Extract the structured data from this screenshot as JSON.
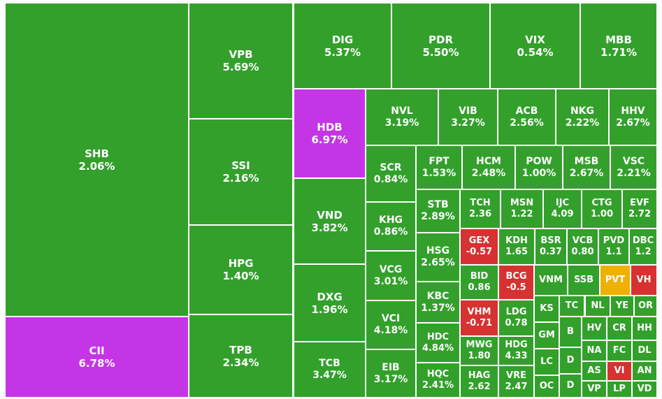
{
  "colors": {
    "up": "#33a02c",
    "down": "#d63232",
    "ceiling": "#c435e6",
    "reference": "#f0b000"
  },
  "chart_data": {
    "type": "treemap",
    "tiles": [
      {
        "id": "SHB",
        "label": "2.06%",
        "status": "up"
      },
      {
        "id": "CII",
        "label": "6.78%",
        "status": "ceiling"
      },
      {
        "id": "VPB",
        "label": "5.69%",
        "status": "up"
      },
      {
        "id": "SSI",
        "label": "2.16%",
        "status": "up"
      },
      {
        "id": "HPG",
        "label": "1.40%",
        "status": "up"
      },
      {
        "id": "TPB",
        "label": "2.34%",
        "status": "up"
      },
      {
        "id": "DIG",
        "label": "5.37%",
        "status": "up"
      },
      {
        "id": "PDR",
        "label": "5.50%",
        "status": "up"
      },
      {
        "id": "VIX",
        "label": "0.54%",
        "status": "up"
      },
      {
        "id": "MBB",
        "label": "1.71%",
        "status": "up"
      },
      {
        "id": "HDB",
        "label": "6.97%",
        "status": "ceiling"
      },
      {
        "id": "VND",
        "label": "3.82%",
        "status": "up"
      },
      {
        "id": "DXG",
        "label": "1.96%",
        "status": "up"
      },
      {
        "id": "TCB",
        "label": "3.47%",
        "status": "up"
      },
      {
        "id": "NVL",
        "label": "3.19%",
        "status": "up"
      },
      {
        "id": "VIB",
        "label": "3.27%",
        "status": "up"
      },
      {
        "id": "ACB",
        "label": "2.56%",
        "status": "up"
      },
      {
        "id": "NKG",
        "label": "2.22%",
        "status": "up"
      },
      {
        "id": "HHV",
        "label": "2.67%",
        "status": "up"
      },
      {
        "id": "SCR",
        "label": "0.84%",
        "status": "up"
      },
      {
        "id": "FPT",
        "label": "1.53%",
        "status": "up"
      },
      {
        "id": "HCM",
        "label": "2.48%",
        "status": "up"
      },
      {
        "id": "POW",
        "label": "1.00%",
        "status": "up"
      },
      {
        "id": "MSB",
        "label": "2.67%",
        "status": "up"
      },
      {
        "id": "VSC",
        "label": "2.21%",
        "status": "up"
      },
      {
        "id": "KHG",
        "label": "0.86%",
        "status": "up"
      },
      {
        "id": "VCG",
        "label": "3.01%",
        "status": "up"
      },
      {
        "id": "VCI",
        "label": "4.18%",
        "status": "up"
      },
      {
        "id": "EIB",
        "label": "3.17%",
        "status": "up"
      },
      {
        "id": "STB",
        "label": "2.89%",
        "status": "up"
      },
      {
        "id": "HSG",
        "label": "2.65%",
        "status": "up"
      },
      {
        "id": "KBC",
        "label": "1.37%",
        "status": "up"
      },
      {
        "id": "HDC",
        "label": "4.84%",
        "status": "up"
      },
      {
        "id": "HQC",
        "label": "2.41%",
        "status": "up"
      },
      {
        "id": "TCH",
        "label": "2.36",
        "status": "up"
      },
      {
        "id": "MSN",
        "label": "1.22",
        "status": "up"
      },
      {
        "id": "IJC",
        "label": "4.09",
        "status": "up"
      },
      {
        "id": "CTG",
        "label": "1.00",
        "status": "up"
      },
      {
        "id": "EVF",
        "label": "2.72",
        "status": "up"
      },
      {
        "id": "GEX",
        "label": "-0.57",
        "status": "down"
      },
      {
        "id": "KDH",
        "label": "1.65",
        "status": "up"
      },
      {
        "id": "BSR",
        "label": "0.37",
        "status": "up"
      },
      {
        "id": "VCB",
        "label": "0.80",
        "status": "up"
      },
      {
        "id": "PVD",
        "label": "1.1",
        "status": "up"
      },
      {
        "id": "DBC",
        "label": "1.2",
        "status": "up"
      },
      {
        "id": "BID",
        "label": "0.86",
        "status": "up"
      },
      {
        "id": "BCG",
        "label": "-0.5",
        "status": "down"
      },
      {
        "id": "VNM",
        "label": "",
        "status": "up"
      },
      {
        "id": "SSB",
        "label": "",
        "status": "up"
      },
      {
        "id": "PVT",
        "label": "",
        "status": "reference"
      },
      {
        "id": "VH",
        "label": "",
        "status": "down"
      },
      {
        "id": "VHM",
        "label": "-0.71",
        "status": "down"
      },
      {
        "id": "LDG",
        "label": "0.78",
        "status": "up"
      },
      {
        "id": "KS",
        "label": "",
        "status": "up"
      },
      {
        "id": "TC",
        "label": "",
        "status": "up"
      },
      {
        "id": "NL",
        "label": "",
        "status": "up"
      },
      {
        "id": "YE",
        "label": "",
        "status": "up"
      },
      {
        "id": "OR",
        "label": "",
        "status": "up"
      },
      {
        "id": "MWG",
        "label": "1.80",
        "status": "up"
      },
      {
        "id": "HDG",
        "label": "4.33",
        "status": "up"
      },
      {
        "id": "GM",
        "label": "",
        "status": "up"
      },
      {
        "id": "B",
        "label": "",
        "status": "up"
      },
      {
        "id": "HV",
        "label": "",
        "status": "up"
      },
      {
        "id": "CR",
        "label": "",
        "status": "up"
      },
      {
        "id": "HH",
        "label": "",
        "status": "up"
      },
      {
        "id": "NA",
        "label": "",
        "status": "up"
      },
      {
        "id": "FC",
        "label": "",
        "status": "up"
      },
      {
        "id": "DL",
        "label": "",
        "status": "up"
      },
      {
        "id": "LC",
        "label": "",
        "status": "up"
      },
      {
        "id": "D",
        "label": "",
        "status": "up"
      },
      {
        "id": "AS",
        "label": "",
        "status": "up"
      },
      {
        "id": "VI",
        "label": "",
        "status": "down"
      },
      {
        "id": "AN",
        "label": "",
        "status": "up"
      },
      {
        "id": "HAG",
        "label": "2.62",
        "status": "up"
      },
      {
        "id": "VRE",
        "label": "2.47",
        "status": "up"
      },
      {
        "id": "OC",
        "label": "",
        "status": "up"
      },
      {
        "id": "D",
        "label": "",
        "status": "up"
      },
      {
        "id": "VP",
        "label": "",
        "status": "up"
      },
      {
        "id": "LP",
        "label": "",
        "status": "up"
      },
      {
        "id": "VD",
        "label": "",
        "status": "up"
      }
    ]
  }
}
